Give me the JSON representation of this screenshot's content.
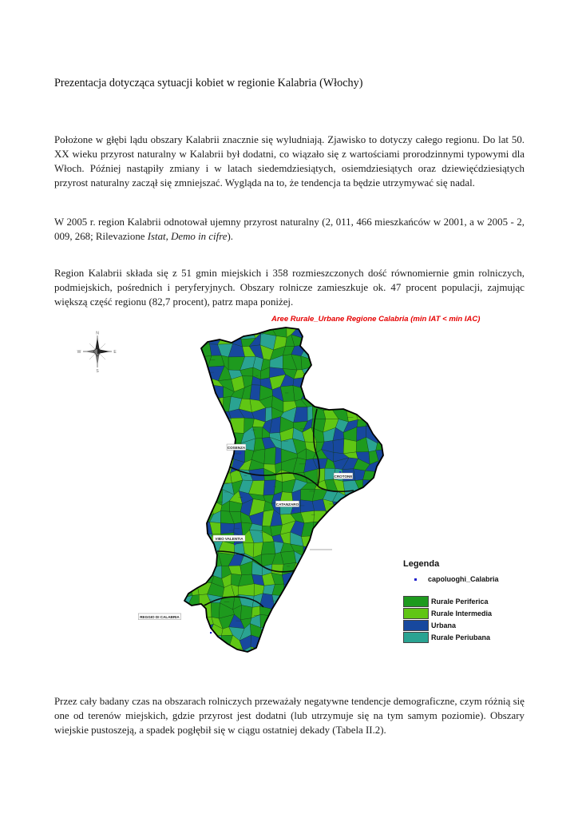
{
  "doc": {
    "title": "Prezentacja dotycząca sytuacji kobiet w regionie Kalabria (Włochy)",
    "p1": "Położone w głębi lądu obszary Kalabrii znacznie się wyludniają. Zjawisko to dotyczy całego regionu. Do lat 50. XX wieku przyrost naturalny w Kalabrii był dodatni, co wiązało się z wartościami prorodzinnymi typowymi dla Włoch. Później nastąpiły zmiany i w latach siedemdziesiątych, osiemdziesiątych oraz dziewięćdziesiątych przyrost naturalny zaczął się zmniejszać. Wygląda na to, że tendencja ta będzie utrzymywać się nadal.",
    "p2": {
      "pre": "W 2005 r. region Kalabrii odnotował ujemny przyrost naturalny (2, 011, 466 mieszkańców w 2001, a w 2005 - 2, 009, 268; Rilevazione ",
      "italic": "Istat, Demo in cifre",
      "post": ")."
    },
    "p3": "Region Kalabrii składa się z 51 gmin miejskich i 358 rozmieszczonych dość równomiernie gmin rolniczych, podmiejskich, pośrednich i peryferyjnych. Obszary rolnicze zamieszkuje ok. 47 procent populacji, zajmując większą część regionu (82,7 procent), patrz mapa poniżej.",
    "p4": "Przez cały badany czas na obszarach rolniczych przeważały negatywne tendencje demograficzne, czym różnią się one od terenów miejskich, gdzie przyrost jest dodatni (lub utrzymuje się na tym samym poziomie). Obszary wiejskie pustoszeją, a spadek pogłębił się w ciągu ostatniej dekady (Tabela II.2)."
  },
  "map": {
    "title": "Aree Rurale_Urbane Regione Calabria (min IAT < min IAC)",
    "title_color": "#e60000",
    "compass": {
      "n": "N",
      "e": "E",
      "s": "S",
      "w": "W"
    },
    "city_labels": [
      "COSENZA",
      "CROTONE",
      "CATANZARO",
      "VIBO VALENTIA",
      "REGGIO DI CALABRIA"
    ],
    "capital_dot_color": "#2222cc",
    "legend": {
      "header": "Legenda",
      "point_item": "capoluoghi_Calabria",
      "items": [
        {
          "label": "Rurale Periferica",
          "color": "#1e9a1e"
        },
        {
          "label": "Rurale Intermedia",
          "color": "#60c614"
        },
        {
          "label": "Urbana",
          "color": "#17489e"
        },
        {
          "label": "Rurale Periubana",
          "color": "#2aa392"
        }
      ]
    }
  }
}
